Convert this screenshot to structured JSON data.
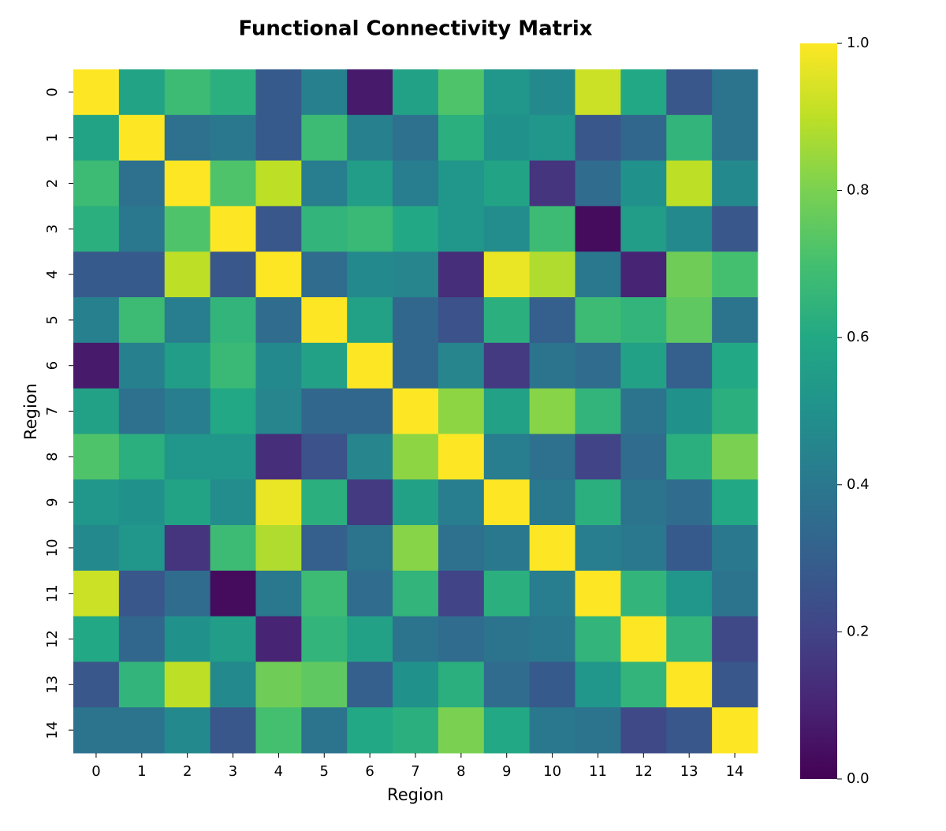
{
  "chart_data": {
    "type": "heatmap",
    "title": "Functional Connectivity Matrix",
    "xlabel": "Region",
    "ylabel": "Region",
    "x_categories": [
      "0",
      "1",
      "2",
      "3",
      "4",
      "5",
      "6",
      "7",
      "8",
      "9",
      "10",
      "11",
      "12",
      "13",
      "14"
    ],
    "y_categories": [
      "0",
      "1",
      "2",
      "3",
      "4",
      "5",
      "6",
      "7",
      "8",
      "9",
      "10",
      "11",
      "12",
      "13",
      "14"
    ],
    "colormap": "viridis",
    "clim": [
      0,
      1
    ],
    "cticks": [
      {
        "value": 0,
        "label": "0.0"
      },
      0.2,
      0.4,
      0.6,
      0.8,
      {
        "value": 1,
        "label": "1.0"
      }
    ],
    "values": [
      [
        1.0,
        0.58,
        0.68,
        0.63,
        0.28,
        0.43,
        0.07,
        0.57,
        0.72,
        0.52,
        0.47,
        0.92,
        0.6,
        0.27,
        0.38
      ],
      [
        0.58,
        1.0,
        0.37,
        0.4,
        0.28,
        0.68,
        0.43,
        0.37,
        0.63,
        0.5,
        0.52,
        0.27,
        0.33,
        0.65,
        0.38
      ],
      [
        0.68,
        0.37,
        1.0,
        0.72,
        0.9,
        0.42,
        0.55,
        0.42,
        0.52,
        0.58,
        0.15,
        0.35,
        0.5,
        0.9,
        0.47
      ],
      [
        0.63,
        0.4,
        0.72,
        1.0,
        0.27,
        0.65,
        0.67,
        0.6,
        0.52,
        0.48,
        0.68,
        0.03,
        0.55,
        0.47,
        0.27
      ],
      [
        0.28,
        0.28,
        0.9,
        0.27,
        1.0,
        0.35,
        0.47,
        0.45,
        0.13,
        0.97,
        0.88,
        0.4,
        0.1,
        0.78,
        0.7
      ],
      [
        0.43,
        0.68,
        0.42,
        0.65,
        0.35,
        1.0,
        0.57,
        0.33,
        0.25,
        0.63,
        0.3,
        0.68,
        0.65,
        0.75,
        0.38
      ],
      [
        0.07,
        0.43,
        0.55,
        0.67,
        0.47,
        0.57,
        1.0,
        0.33,
        0.45,
        0.17,
        0.38,
        0.35,
        0.57,
        0.3,
        0.6
      ],
      [
        0.57,
        0.37,
        0.42,
        0.6,
        0.45,
        0.33,
        0.33,
        1.0,
        0.83,
        0.57,
        0.82,
        0.65,
        0.38,
        0.5,
        0.63
      ],
      [
        0.72,
        0.63,
        0.52,
        0.52,
        0.13,
        0.25,
        0.45,
        0.83,
        1.0,
        0.42,
        0.37,
        0.2,
        0.35,
        0.63,
        0.8
      ],
      [
        0.52,
        0.5,
        0.58,
        0.48,
        0.97,
        0.63,
        0.17,
        0.57,
        0.42,
        1.0,
        0.4,
        0.63,
        0.38,
        0.35,
        0.6
      ],
      [
        0.47,
        0.52,
        0.15,
        0.68,
        0.88,
        0.3,
        0.38,
        0.82,
        0.37,
        0.4,
        1.0,
        0.42,
        0.4,
        0.28,
        0.4
      ],
      [
        0.92,
        0.27,
        0.35,
        0.03,
        0.4,
        0.68,
        0.35,
        0.65,
        0.2,
        0.63,
        0.42,
        1.0,
        0.65,
        0.52,
        0.38
      ],
      [
        0.6,
        0.33,
        0.5,
        0.55,
        0.1,
        0.65,
        0.57,
        0.38,
        0.35,
        0.38,
        0.4,
        0.65,
        1.0,
        0.65,
        0.22
      ],
      [
        0.27,
        0.65,
        0.9,
        0.47,
        0.78,
        0.75,
        0.3,
        0.5,
        0.63,
        0.35,
        0.28,
        0.52,
        0.65,
        1.0,
        0.27
      ],
      [
        0.38,
        0.38,
        0.47,
        0.27,
        0.7,
        0.38,
        0.6,
        0.63,
        0.8,
        0.6,
        0.4,
        0.38,
        0.22,
        0.27,
        1.0
      ]
    ]
  }
}
